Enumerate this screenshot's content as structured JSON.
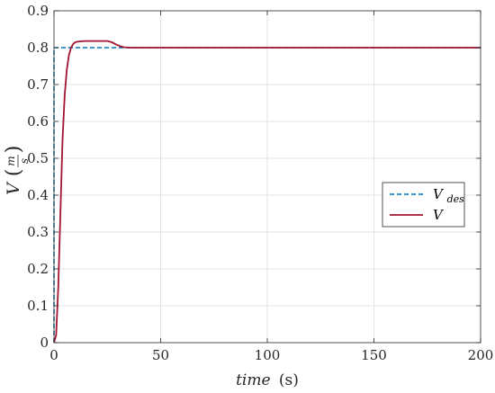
{
  "chart_data": {
    "type": "line",
    "title": "",
    "xlabel": {
      "main": "time",
      "unit": "(s)"
    },
    "ylabel": {
      "main": "V",
      "num": "m",
      "den": "s"
    },
    "xlim": [
      0,
      200
    ],
    "ylim": [
      0,
      0.9
    ],
    "xticks": [
      0,
      50,
      100,
      150,
      200
    ],
    "xtick_labels": [
      "0",
      "50",
      "100",
      "150",
      "200"
    ],
    "yticks": [
      0,
      0.1,
      0.2,
      0.3,
      0.4,
      0.5,
      0.6,
      0.7,
      0.8,
      0.9
    ],
    "ytick_labels": [
      "0",
      "0.1",
      "0.2",
      "0.3",
      "0.4",
      "0.5",
      "0.6",
      "0.7",
      "0.8",
      "0.9"
    ],
    "grid": true,
    "legend_position": "right",
    "series": [
      {
        "name": "V",
        "name_sub": "des",
        "color": "#0072BD",
        "style": "dashed",
        "x": [
          0,
          0,
          200
        ],
        "y": [
          0,
          0.8,
          0.8
        ]
      },
      {
        "name": "V",
        "name_sub": "",
        "color": "#A2142F",
        "style": "solid",
        "x": [
          0,
          1,
          2,
          3,
          4,
          5,
          6,
          7,
          8,
          9,
          10,
          12,
          15,
          20,
          25,
          27,
          29,
          31,
          33,
          36,
          40,
          45,
          200
        ],
        "y": [
          0,
          0.02,
          0.15,
          0.35,
          0.55,
          0.67,
          0.74,
          0.78,
          0.8,
          0.81,
          0.815,
          0.817,
          0.818,
          0.818,
          0.818,
          0.815,
          0.809,
          0.804,
          0.801,
          0.8,
          0.8,
          0.8,
          0.8
        ]
      }
    ]
  }
}
